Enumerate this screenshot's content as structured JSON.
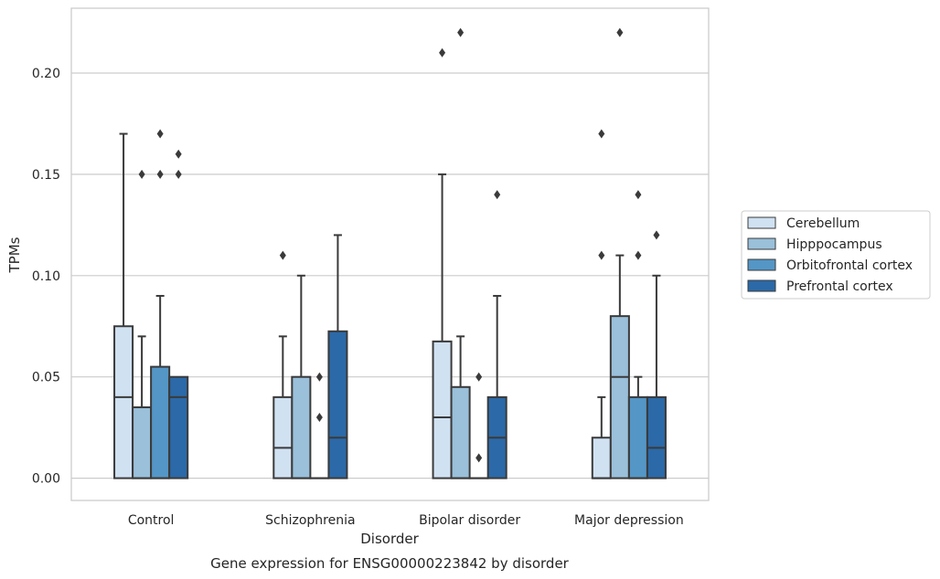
{
  "chart_data": {
    "type": "boxplot",
    "title": "",
    "caption": "Gene expression for ENSG00000223842 by disorder",
    "xlabel": "Disorder",
    "ylabel": "TPMs",
    "ylim": [
      -0.011,
      0.232
    ],
    "yticks": [
      0.0,
      0.05,
      0.1,
      0.15,
      0.2
    ],
    "ytick_labels": [
      "0.00",
      "0.05",
      "0.10",
      "0.15",
      "0.20"
    ],
    "grid": "horizontal",
    "legend_position": "right",
    "categories": [
      "Control",
      "Schizophrenia",
      "Bipolar disorder",
      "Major depression"
    ],
    "series": [
      {
        "name": "Cerebellum",
        "color": "#d0e1f2",
        "boxes": [
          {
            "q1": 0.0,
            "median": 0.04,
            "q3": 0.075,
            "whisker_low": 0.0,
            "whisker_high": 0.17,
            "outliers": []
          },
          {
            "q1": 0.0,
            "median": 0.015,
            "q3": 0.04,
            "whisker_low": 0.0,
            "whisker_high": 0.07,
            "outliers": [
              0.11
            ]
          },
          {
            "q1": 0.0,
            "median": 0.03,
            "q3": 0.0675,
            "whisker_low": 0.0,
            "whisker_high": 0.15,
            "outliers": [
              0.21
            ]
          },
          {
            "q1": 0.0,
            "median": 0.0,
            "q3": 0.02,
            "whisker_low": 0.0,
            "whisker_high": 0.04,
            "outliers": [
              0.11,
              0.17
            ]
          }
        ]
      },
      {
        "name": "Hipppocampus",
        "color": "#9ac0da",
        "boxes": [
          {
            "q1": 0.0,
            "median": 0.0,
            "q3": 0.035,
            "whisker_low": 0.0,
            "whisker_high": 0.07,
            "outliers": [
              0.15
            ]
          },
          {
            "q1": 0.0,
            "median": 0.0,
            "q3": 0.05,
            "whisker_low": 0.0,
            "whisker_high": 0.1,
            "outliers": []
          },
          {
            "q1": 0.0,
            "median": 0.0,
            "q3": 0.045,
            "whisker_low": 0.0,
            "whisker_high": 0.07,
            "outliers": [
              0.22
            ]
          },
          {
            "q1": 0.0,
            "median": 0.05,
            "q3": 0.08,
            "whisker_low": 0.0,
            "whisker_high": 0.11,
            "outliers": [
              0.22
            ]
          }
        ]
      },
      {
        "name": "Orbitofrontal cortex",
        "color": "#5496c6",
        "boxes": [
          {
            "q1": 0.0,
            "median": 0.0,
            "q3": 0.055,
            "whisker_low": 0.0,
            "whisker_high": 0.09,
            "outliers": [
              0.15,
              0.17
            ]
          },
          {
            "q1": 0.0,
            "median": 0.0,
            "q3": 0.0,
            "whisker_low": 0.0,
            "whisker_high": 0.0,
            "outliers": [
              0.03,
              0.05
            ]
          },
          {
            "q1": 0.0,
            "median": 0.0,
            "q3": 0.0,
            "whisker_low": 0.0,
            "whisker_high": 0.0,
            "outliers": [
              0.01,
              0.05
            ]
          },
          {
            "q1": 0.0,
            "median": 0.0,
            "q3": 0.04,
            "whisker_low": 0.0,
            "whisker_high": 0.05,
            "outliers": [
              0.11,
              0.14
            ]
          }
        ]
      },
      {
        "name": "Prefrontal cortex",
        "color": "#2b69a8",
        "boxes": [
          {
            "q1": 0.0,
            "median": 0.04,
            "q3": 0.05,
            "whisker_low": 0.0,
            "whisker_high": 0.05,
            "outliers": [
              0.15,
              0.16
            ]
          },
          {
            "q1": 0.0,
            "median": 0.02,
            "q3": 0.0725,
            "whisker_low": 0.0,
            "whisker_high": 0.12,
            "outliers": []
          },
          {
            "q1": 0.0,
            "median": 0.02,
            "q3": 0.04,
            "whisker_low": 0.0,
            "whisker_high": 0.09,
            "outliers": [
              0.14
            ]
          },
          {
            "q1": 0.0,
            "median": 0.015,
            "q3": 0.04,
            "whisker_low": 0.0,
            "whisker_high": 0.1,
            "outliers": [
              0.12
            ]
          }
        ]
      }
    ]
  }
}
